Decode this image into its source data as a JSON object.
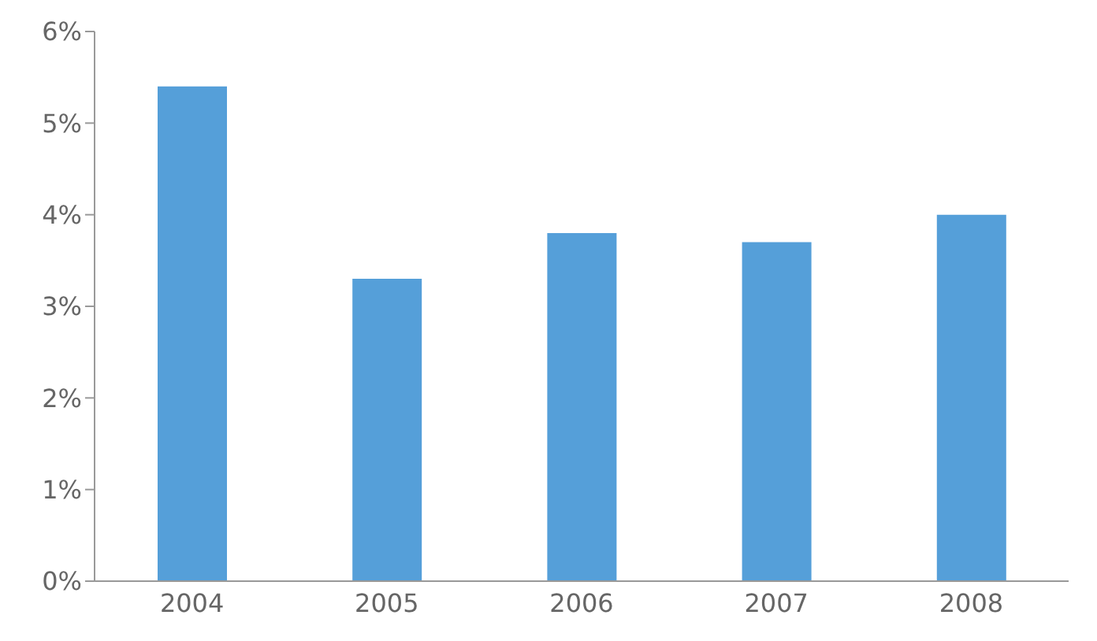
{
  "chart_data": {
    "type": "bar",
    "categories": [
      "2004",
      "2005",
      "2006",
      "2007",
      "2008"
    ],
    "values": [
      5.4,
      3.3,
      3.8,
      3.7,
      4.0
    ],
    "color": "#559fd9",
    "ylim": [
      0,
      6
    ],
    "yticks": [
      {
        "value": 0,
        "label": "0%"
      },
      {
        "value": 1,
        "label": "1%"
      },
      {
        "value": 2,
        "label": "2%"
      },
      {
        "value": 3,
        "label": "3%"
      },
      {
        "value": 4,
        "label": "4%"
      },
      {
        "value": 5,
        "label": "5%"
      },
      {
        "value": 6,
        "label": "6%"
      }
    ],
    "grid": false
  }
}
